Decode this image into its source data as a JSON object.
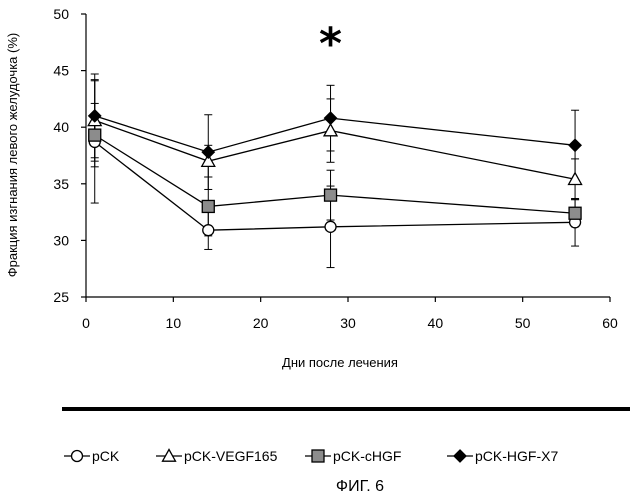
{
  "chart_data": {
    "type": "line",
    "title": "",
    "xlabel": "Дни после лечения",
    "ylabel": "Фракция изгнания левого желудочка (%)",
    "xlim": [
      0,
      60
    ],
    "ylim": [
      25,
      50
    ],
    "xticks": [
      0,
      10,
      20,
      30,
      40,
      50,
      60
    ],
    "yticks": [
      25,
      30,
      35,
      40,
      45,
      50
    ],
    "grid": false,
    "legend_position": "bottom",
    "x": [
      1,
      14,
      28,
      56
    ],
    "series": [
      {
        "name": "pCK",
        "marker": "circle-open",
        "values": [
          38.7,
          30.9,
          31.2,
          31.6
        ],
        "errors": [
          5.4,
          1.7,
          3.6,
          2.1
        ]
      },
      {
        "name": "pCK-VEGF165",
        "marker": "triangle-open",
        "values": [
          40.6,
          37.0,
          39.7,
          35.4
        ],
        "errors": [
          3.6,
          1.4,
          2.8,
          1.8
        ]
      },
      {
        "name": "pCK-cHGF",
        "marker": "square-gray",
        "values": [
          39.3,
          33.0,
          34.0,
          32.4
        ],
        "errors": [
          2.8,
          2.6,
          2.2,
          1.2
        ]
      },
      {
        "name": "pCK-HGF-X7",
        "marker": "diamond-filled",
        "values": [
          41.0,
          37.8,
          40.8,
          38.4
        ],
        "errors": [
          3.7,
          3.3,
          2.9,
          3.1
        ]
      }
    ],
    "annotations": [
      {
        "text": "*",
        "x": 28,
        "y": 47.5
      }
    ],
    "colors": {
      "line": "#000000",
      "square_fill": "#8c8c8c",
      "open_fill": "#ffffff"
    }
  },
  "caption": "ФИГ. 6"
}
